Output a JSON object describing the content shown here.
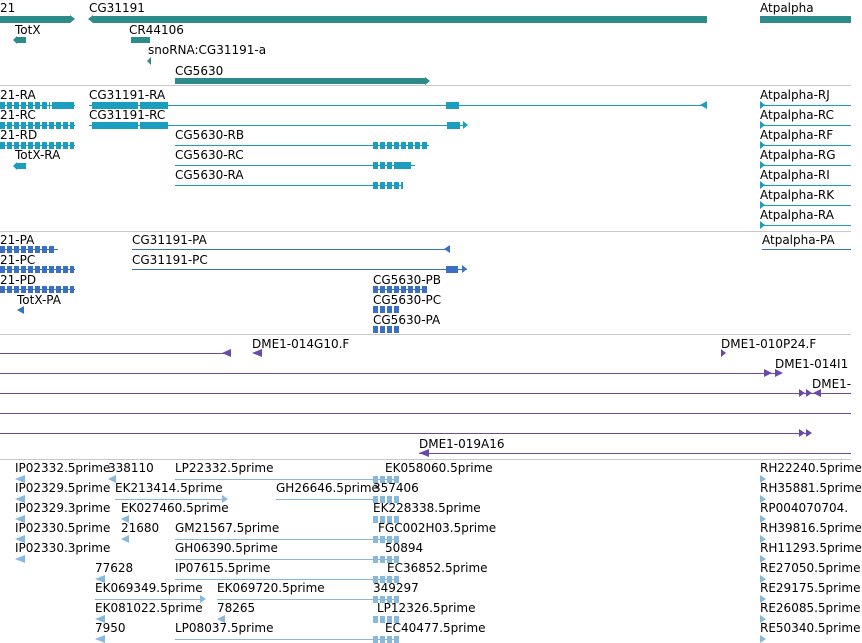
{
  "colors": {
    "gene": "#2e8b8b",
    "transcript": "#1b9dc0",
    "protein": "#3a6fc4",
    "clone": "#6a4aa8",
    "est": "#88b8dc"
  },
  "genes": {
    "g21": "21",
    "g31191": "CG31191",
    "atpalpha": "Atpalpha",
    "totx": "TotX",
    "cr44106": "CR44106",
    "snorna": "snoRNA:CG31191-a",
    "cg5630": "CG5630"
  },
  "transcripts": {
    "t21ra": "21-RA",
    "t31191ra": "CG31191-RA",
    "atprj": "Atpalpha-RJ",
    "t21rc": "21-RC",
    "t31191rc": "CG31191-RC",
    "atprc": "Atpalpha-RC",
    "t21rd": "21-RD",
    "t5630rb": "CG5630-RB",
    "atprf": "Atpalpha-RF",
    "totxra": "TotX-RA",
    "t5630rc": "CG5630-RC",
    "atprg": "Atpalpha-RG",
    "t5630ra": "CG5630-RA",
    "atpri": "Atpalpha-RI",
    "atprk": "Atpalpha-RK",
    "atpra": "Atpalpha-RA"
  },
  "proteins": {
    "p21pa": "21-PA",
    "p31191pa": "CG31191-PA",
    "atppa": "Atpalpha-PA",
    "p21pc": "21-PC",
    "p31191pc": "CG31191-PC",
    "p21pd": "21-PD",
    "p5630pb": "CG5630-PB",
    "totxpa": "TotX-PA",
    "p5630pc": "CG5630-PC",
    "p5630pa": "CG5630-PA"
  },
  "clones": {
    "c014g10": "DME1-014G10.F",
    "c010p24": "DME1-010P24.F",
    "c014i1": "DME1-014I1",
    "c1": "DME1-",
    "c019a16": "DME1-019A16"
  },
  "ests": {
    "e1": "IP02332.5prime",
    "e2": "338110",
    "e3": "LP22332.5prime",
    "e4": "EK058060.5prime",
    "e5": "RH22240.5prime",
    "e6": "IP02329.5prime",
    "e7": "EK213414.5prime",
    "e8": "GH26646.5prime",
    "e9": "357406",
    "e10": "RH35881.5prime",
    "e11": "IP02329.3prime",
    "e12": "EK027460.5prime",
    "e13": "EK228338.5prime",
    "e14": "RP004070704.",
    "e15": "IP02330.5prime",
    "e16": "21680",
    "e17": "GM21567.5prime",
    "e18": "FGC002H03.5prime",
    "e19": "RH39816.5prime",
    "e20": "IP02330.3prime",
    "e21": "GH06390.5prime",
    "e22": "50894",
    "e23": "RH11293.5prime",
    "e24": "77628",
    "e25": "IP07615.5prime",
    "e26": "EC36852.5prime",
    "e27": "RE27050.5prime",
    "e28": "EK069349.5prime",
    "e29": "EK069720.5prime",
    "e30": "349297",
    "e31": "RE29175.5prime",
    "e32": "EK081022.5prime",
    "e33": "78265",
    "e34": "LP12326.5prime",
    "e35": "RE26085.5prime",
    "e36": "7950",
    "e37": "LP08037.5prime",
    "e38": "EC40477.5prime",
    "e39": "RE50340.5prime"
  }
}
